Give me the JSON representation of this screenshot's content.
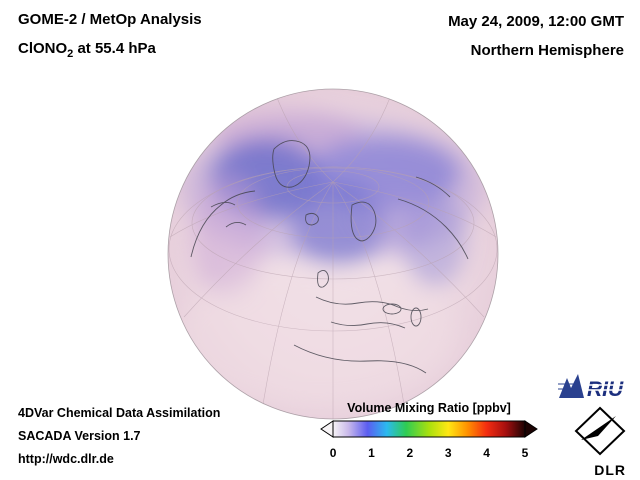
{
  "header": {
    "analysis_line": "GOME-2 / MetOp Analysis",
    "species_prefix": "ClONO",
    "species_sub": "2",
    "species_suffix": " at 55.4 hPa",
    "datetime": "May 24, 2009, 12:00 GMT",
    "hemisphere": "Northern Hemisphere"
  },
  "footer": {
    "line1": "4DVar Chemical Data Assimilation",
    "line2": "SACADA Version 1.7",
    "line3": "http://wdc.dlr.de"
  },
  "logos": {
    "riu_text": "RIU",
    "dlr_text": "DLR"
  },
  "chart_data": {
    "type": "heatmap",
    "title": "GOME-2 / MetOp Analysis ClONO2 at 55.4 hPa",
    "datetime": "May 24, 2009, 12:00 GMT",
    "region": "Northern Hemisphere",
    "projection": "orthographic globe, northern hemisphere view centered near Europe/North Pole",
    "colorbar": {
      "label": "Volume Mixing Ratio [ppbv]",
      "range": [
        0,
        5
      ],
      "ticks": [
        0,
        1,
        2,
        3,
        4,
        5
      ],
      "tick_labels": [
        "0",
        "1",
        "2",
        "3",
        "4",
        "5"
      ],
      "stops": [
        {
          "value": 0.0,
          "color": "#f7f4f6"
        },
        {
          "value": 0.4,
          "color": "#c9b9ea"
        },
        {
          "value": 0.9,
          "color": "#5b5df0"
        },
        {
          "value": 1.4,
          "color": "#2bb9ef"
        },
        {
          "value": 1.9,
          "color": "#2ecc54"
        },
        {
          "value": 2.5,
          "color": "#a9e00e"
        },
        {
          "value": 3.0,
          "color": "#ffe713"
        },
        {
          "value": 3.5,
          "color": "#ff9100"
        },
        {
          "value": 4.0,
          "color": "#f42d10"
        },
        {
          "value": 4.5,
          "color": "#a60f0f"
        },
        {
          "value": 5.0,
          "color": "#1c0303"
        }
      ]
    },
    "summary": "Mostly low ClONO2 values (pale pink, < 0.5 ppbv) over mid-latitudes with enhanced values (blue-purple, ~0.5-1.5 ppbv) in a band over the Arctic, northern Canada, Greenland, Scandinavia and Siberia"
  }
}
